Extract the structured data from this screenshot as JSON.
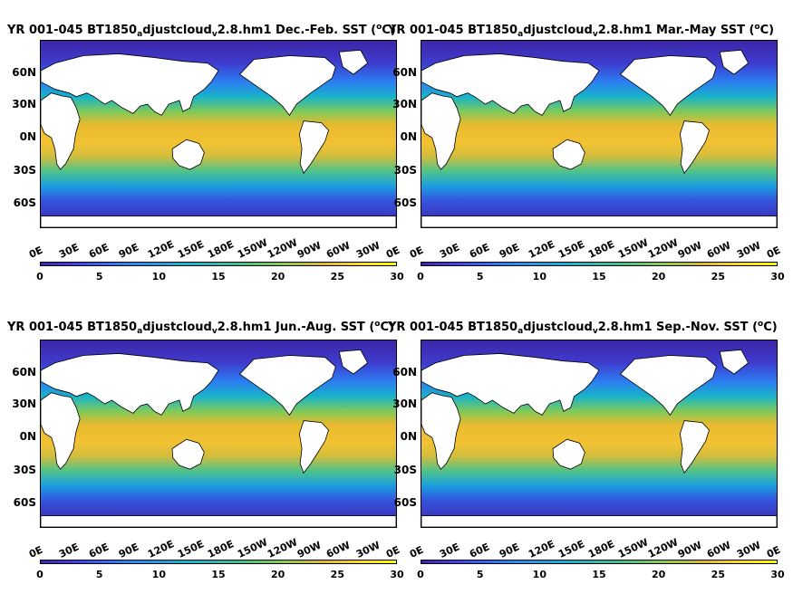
{
  "panels": [
    {
      "title_main": "YR 001-045 BT1850",
      "title_sub": "a",
      "title_mid": "djustcloud",
      "title_sub2": "v",
      "title_end": "2.8.hm1 Dec.-Feb. SST (",
      "title_sup": "o",
      "title_close": "C)"
    },
    {
      "title_main": "YR 001-045 BT1850",
      "title_sub": "a",
      "title_mid": "djustcloud",
      "title_sub2": "v",
      "title_end": "2.8.hm1 Mar.-May SST (",
      "title_sup": "o",
      "title_close": "C)"
    },
    {
      "title_main": "YR 001-045 BT1850",
      "title_sub": "a",
      "title_mid": "djustcloud",
      "title_sub2": "v",
      "title_end": "2.8.hm1 Jun.-Aug. SST (",
      "title_sup": "o",
      "title_close": "C)"
    },
    {
      "title_main": "YR 001-045 BT1850",
      "title_sub": "a",
      "title_mid": "djustcloud",
      "title_sub2": "v",
      "title_end": "2.8.hm1 Sep.-Nov. SST (",
      "title_sup": "o",
      "title_close": "C)"
    }
  ],
  "y_ticks": [
    "60N",
    "30N",
    "0N",
    "30S",
    "60S"
  ],
  "x_ticks": [
    "0E",
    "30E",
    "60E",
    "90E",
    "120E",
    "150E",
    "180E",
    "150W",
    "120W",
    "90W",
    "60W",
    "30W",
    "0E"
  ],
  "colorbar_ticks": [
    "0",
    "5",
    "10",
    "15",
    "20",
    "25",
    "30"
  ],
  "chart_data": [
    {
      "type": "heatmap",
      "season": "Dec.-Feb.",
      "variable": "SST",
      "units": "oC",
      "color_range": [
        0,
        30
      ],
      "colormap": "parula",
      "lon_range": [
        0,
        360
      ],
      "lat_range": [
        -80,
        90
      ]
    },
    {
      "type": "heatmap",
      "season": "Mar.-May",
      "variable": "SST",
      "units": "oC",
      "color_range": [
        0,
        30
      ],
      "colormap": "parula",
      "lon_range": [
        0,
        360
      ],
      "lat_range": [
        -80,
        90
      ]
    },
    {
      "type": "heatmap",
      "season": "Jun.-Aug.",
      "variable": "SST",
      "units": "oC",
      "color_range": [
        0,
        30
      ],
      "colormap": "parula",
      "lon_range": [
        0,
        360
      ],
      "lat_range": [
        -80,
        90
      ]
    },
    {
      "type": "heatmap",
      "season": "Sep.-Nov.",
      "variable": "SST",
      "units": "oC",
      "color_range": [
        0,
        30
      ],
      "colormap": "parula",
      "lon_range": [
        0,
        360
      ],
      "lat_range": [
        -80,
        90
      ]
    }
  ]
}
